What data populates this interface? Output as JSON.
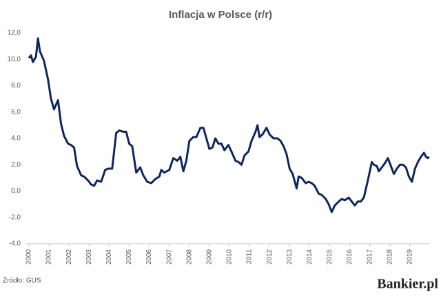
{
  "chart_data": {
    "type": "line",
    "title": "Inflacja w Polsce (r/r)",
    "source": "Źródło: GUS",
    "brand": "Bankier.pl",
    "xlim": [
      2000,
      2020
    ],
    "xticks": [
      2000,
      2001,
      2002,
      2003,
      2004,
      2005,
      2006,
      2007,
      2008,
      2009,
      2010,
      2011,
      2012,
      2013,
      2014,
      2015,
      2016,
      2017,
      2018,
      2019
    ],
    "ylim": [
      -4,
      12
    ],
    "yticks": [
      {
        "value": -4,
        "label": "-4,0"
      },
      {
        "value": -2,
        "label": "-2,0"
      },
      {
        "value": 0,
        "label": "0,0"
      },
      {
        "value": 2,
        "label": "2,0"
      },
      {
        "value": 4,
        "label": "4,0"
      },
      {
        "value": 6,
        "label": "6,0"
      },
      {
        "value": 8,
        "label": "8,0"
      },
      {
        "value": 10,
        "label": "10,0"
      },
      {
        "value": 12,
        "label": "12,0"
      }
    ],
    "grid": false,
    "color": "#0e2660",
    "x": [
      2000.0,
      2000.1,
      2000.2,
      2000.35,
      2000.45,
      2000.55,
      2000.75,
      2000.95,
      2001.1,
      2001.25,
      2001.45,
      2001.6,
      2001.75,
      2001.95,
      2002.1,
      2002.25,
      2002.4,
      2002.6,
      2002.75,
      2002.95,
      2003.1,
      2003.25,
      2003.4,
      2003.6,
      2003.8,
      2003.95,
      2004.15,
      2004.35,
      2004.5,
      2004.7,
      2004.85,
      2005.0,
      2005.15,
      2005.35,
      2005.55,
      2005.7,
      2005.9,
      2006.1,
      2006.3,
      2006.5,
      2006.6,
      2006.75,
      2007.0,
      2007.2,
      2007.4,
      2007.55,
      2007.7,
      2007.85,
      2008.0,
      2008.2,
      2008.35,
      2008.55,
      2008.7,
      2008.85,
      2009.0,
      2009.15,
      2009.3,
      2009.45,
      2009.6,
      2009.75,
      2009.95,
      2010.1,
      2010.3,
      2010.45,
      2010.6,
      2010.75,
      2010.95,
      2011.1,
      2011.3,
      2011.4,
      2011.5,
      2011.65,
      2011.85,
      2012.0,
      2012.2,
      2012.4,
      2012.55,
      2012.7,
      2012.85,
      2013.0,
      2013.15,
      2013.35,
      2013.45,
      2013.6,
      2013.8,
      2013.95,
      2014.1,
      2014.25,
      2014.45,
      2014.6,
      2014.8,
      2014.95,
      2015.1,
      2015.25,
      2015.45,
      2015.6,
      2015.75,
      2015.95,
      2016.1,
      2016.25,
      2016.4,
      2016.55,
      2016.7,
      2016.9,
      2017.1,
      2017.2,
      2017.35,
      2017.45,
      2017.6,
      2017.75,
      2017.9,
      2018.05,
      2018.2,
      2018.35,
      2018.5,
      2018.65,
      2018.8,
      2018.95,
      2019.1,
      2019.25,
      2019.4,
      2019.55,
      2019.7,
      2019.8,
      2019.9,
      2019.95
    ],
    "values": [
      10.1,
      10.3,
      9.8,
      10.2,
      11.6,
      10.6,
      9.9,
      8.5,
      7.0,
      6.2,
      6.9,
      5.1,
      4.2,
      3.6,
      3.5,
      3.3,
      1.9,
      1.2,
      1.1,
      0.8,
      0.5,
      0.4,
      0.8,
      0.7,
      1.6,
      1.7,
      1.7,
      4.4,
      4.6,
      4.5,
      4.5,
      3.6,
      3.4,
      1.4,
      1.8,
      1.2,
      0.7,
      0.6,
      0.9,
      1.1,
      1.6,
      1.4,
      1.6,
      2.5,
      2.3,
      2.6,
      1.5,
      2.3,
      3.8,
      4.1,
      4.1,
      4.8,
      4.8,
      4.0,
      3.2,
      3.3,
      4.0,
      3.6,
      3.6,
      3.1,
      3.5,
      3.0,
      2.3,
      2.2,
      2.0,
      2.7,
      3.0,
      3.8,
      4.5,
      5.0,
      4.1,
      4.3,
      4.8,
      4.3,
      4.0,
      4.0,
      3.8,
      3.4,
      2.8,
      1.7,
      1.3,
      0.2,
      1.1,
      1.0,
      0.6,
      0.7,
      0.6,
      0.4,
      -0.2,
      -0.3,
      -0.6,
      -1.0,
      -1.6,
      -1.1,
      -0.8,
      -0.6,
      -0.7,
      -0.5,
      -0.8,
      -1.1,
      -0.8,
      -0.8,
      -0.5,
      0.8,
      2.2,
      2.0,
      1.9,
      1.5,
      1.8,
      2.1,
      2.5,
      1.9,
      1.3,
      1.7,
      2.0,
      2.0,
      1.8,
      1.1,
      0.7,
      1.7,
      2.2,
      2.6,
      2.9,
      2.6,
      2.5,
      2.6
    ]
  }
}
